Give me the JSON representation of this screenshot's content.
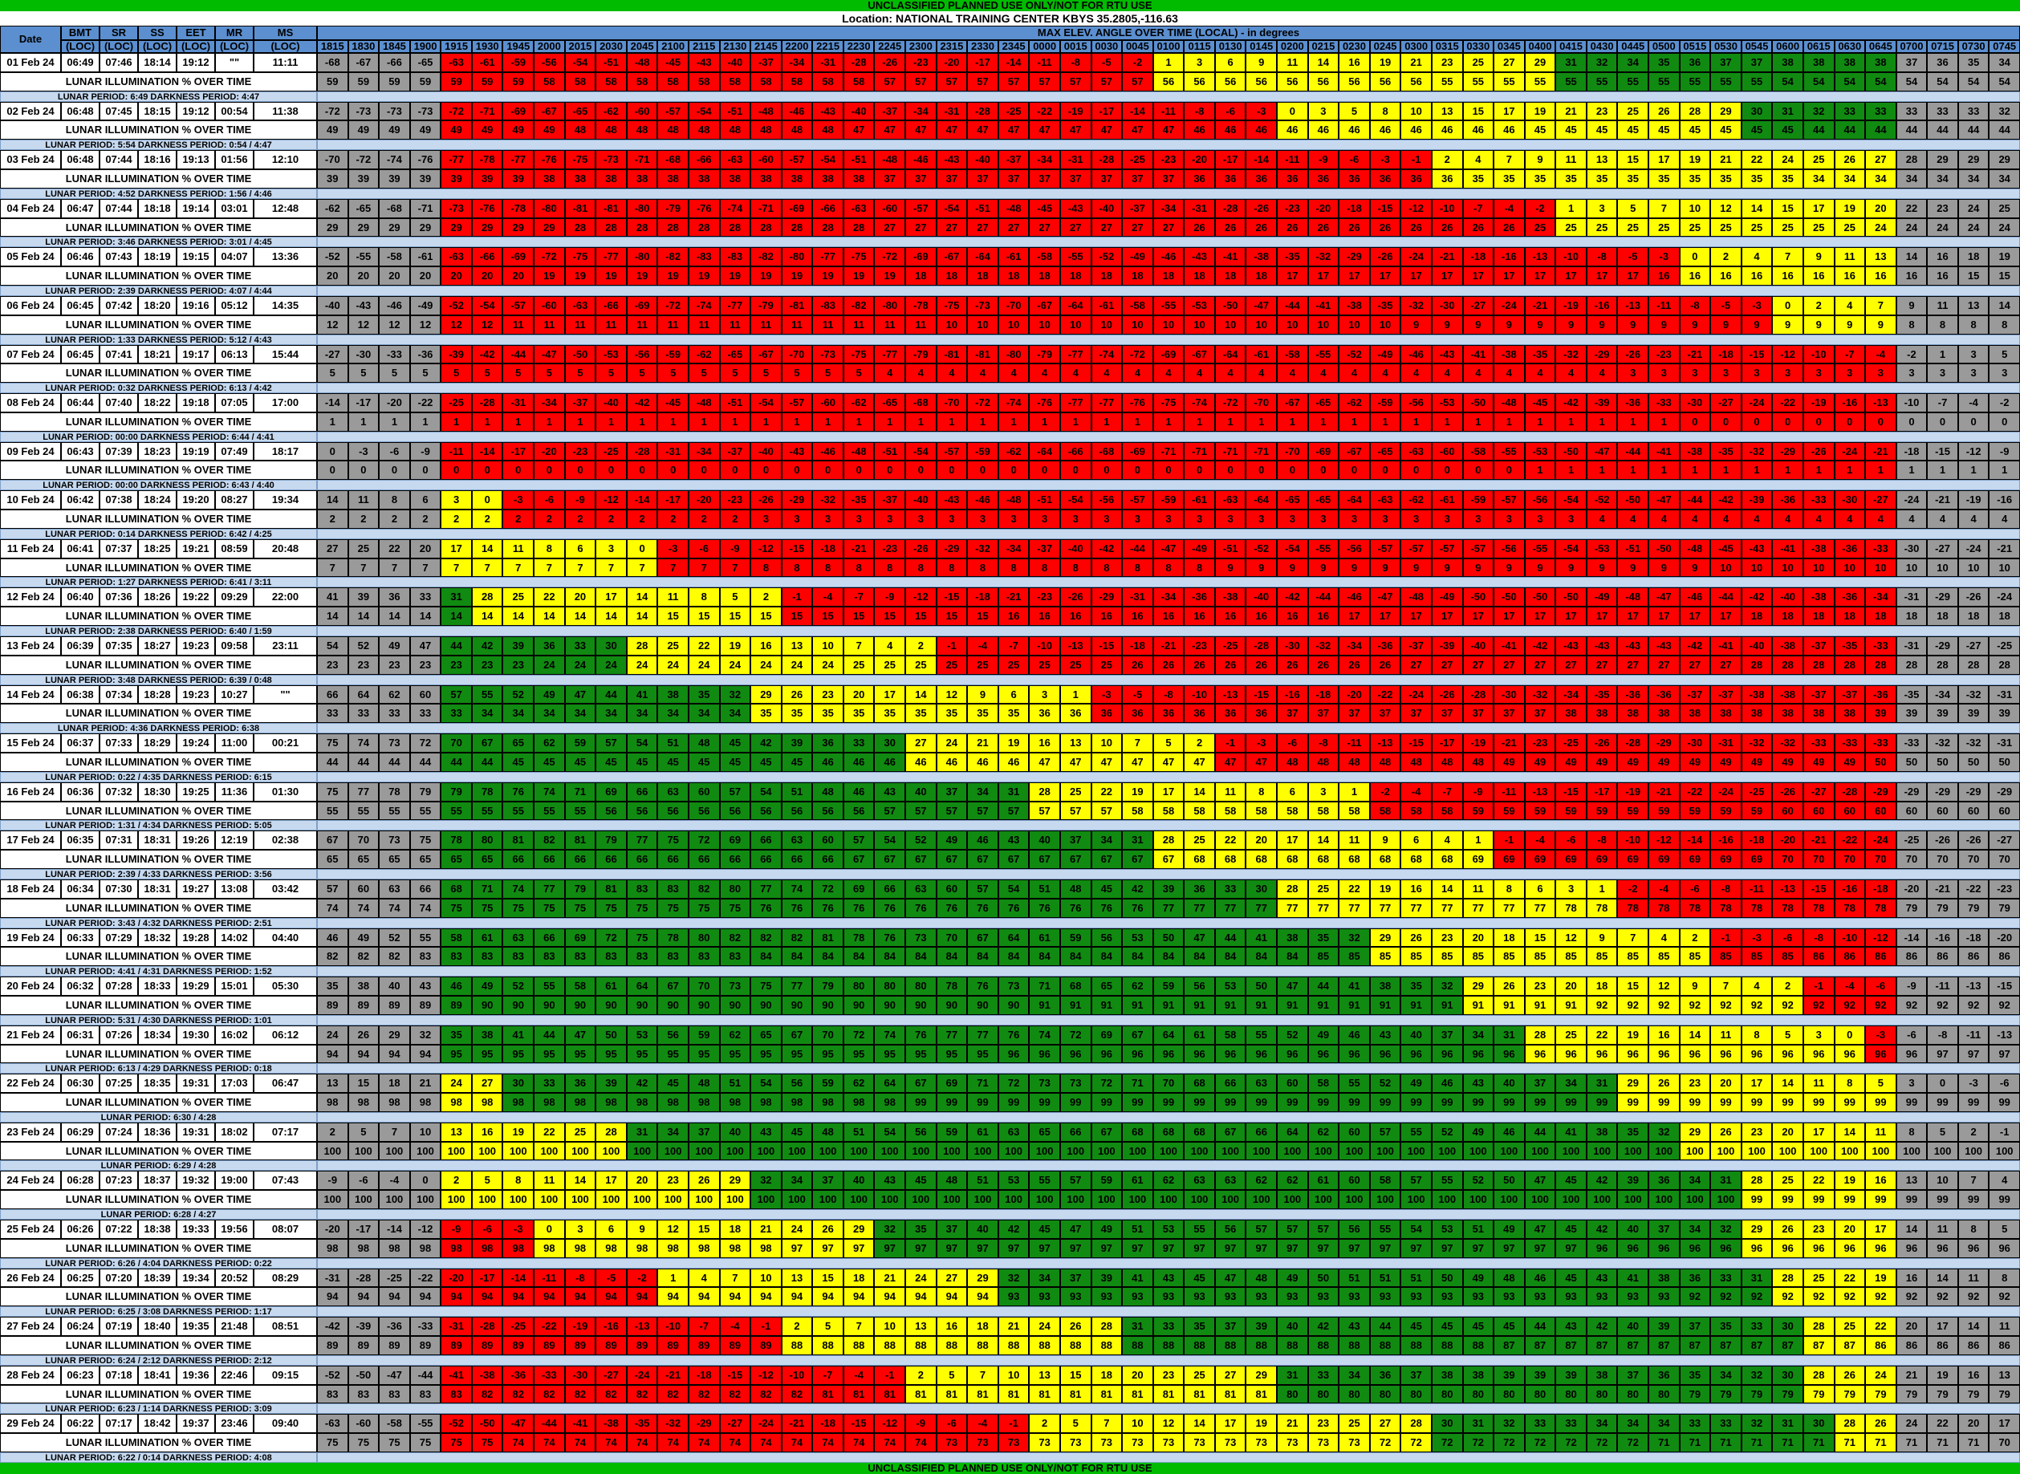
{
  "banner_top": "UNCLASSIFIED PLANNED USE ONLY/NOT FOR RTU USE",
  "banner_bottom": "UNCLASSIFIED PLANNED USE ONLY/NOT FOR RTU USE",
  "location": "Location: NATIONAL TRAINING CENTER KBYS 35.2805,-116.63",
  "header": {
    "date": "Date",
    "cols": [
      [
        "BMT",
        "(LOC)"
      ],
      [
        "SR",
        "(LOC)"
      ],
      [
        "SS",
        "(LOC)"
      ],
      [
        "EET",
        "(LOC)"
      ],
      [
        "MR",
        "(LOC)"
      ],
      [
        "MS",
        "(LOC)"
      ]
    ],
    "max_elev": "MAX ELEV. ANGLE OVER TIME (LOCAL) - in degrees",
    "times": [
      "1815",
      "1830",
      "1845",
      "1900",
      "1915",
      "1930",
      "1945",
      "2000",
      "2015",
      "2030",
      "2045",
      "2100",
      "2115",
      "2130",
      "2145",
      "2200",
      "2215",
      "2230",
      "2245",
      "2300",
      "2315",
      "2330",
      "2345",
      "0000",
      "0015",
      "0030",
      "0045",
      "0100",
      "0115",
      "0130",
      "0145",
      "0200",
      "0215",
      "0230",
      "0245",
      "0300",
      "0315",
      "0330",
      "0345",
      "0400",
      "0415",
      "0430",
      "0445",
      "0500",
      "0515",
      "0530",
      "0545",
      "0600",
      "0615",
      "0630",
      "0645",
      "0700",
      "0715",
      "0730",
      "0745"
    ]
  },
  "illum_label": "LUNAR ILLUMINATION % OVER TIME",
  "colors": {
    "gray": "#9a9a9a",
    "red": "#ff0000",
    "yellow": "#ffff00",
    "green": "#118a11",
    "period_band": "#c6d9ef",
    "header": "#5b8fd0"
  },
  "days": [
    {
      "date": "01 Feb 24",
      "bmt": "06:49",
      "sr": "07:46",
      "ss": "18:14",
      "eet": "19:12",
      "mr": "\"\"",
      "ms": "11:11",
      "elev": "-68 -67 -66 -65 -63 -61 -59 -56 -54 -51 -48 -45 -43 -40 -37 -34 -31 -28 -26 -23 -20 -17 -14 -11 -8 -5 -2 1 3 6 9 11 14 16 19 21 23 25 27 29 31 32 34 35 36 37 37 38 38 38 38 37 36 35 34",
      "illum": "59 59 59 59 59 59 59 58 58 58 58 58 58 58 58 58 58 58 57 57 57 57 57 57 57 57 57 56 56 56 56 56 56 56 56 56 55 55 55 55 55 55 55 55 55 55 55 54 54 54 54 54 54 54 54",
      "period": "LUNAR PERIOD: 6:49  DARKNESS PERIOD: 4:47"
    },
    {
      "date": "02 Feb 24",
      "bmt": "06:48",
      "sr": "07:45",
      "ss": "18:15",
      "eet": "19:12",
      "mr": "00:54",
      "ms": "11:38",
      "elev": "-72 -73 -73 -73 -72 -71 -69 -67 -65 -62 -60 -57 -54 -51 -48 -46 -43 -40 -37 -34 -31 -28 -25 -22 -19 -17 -14 -11 -8 -6 -3 0 3 5 8 10 13 15 17 19 21 23 25 26 28 29 30 31 32 33 33 33 33 33 32",
      "illum": "49 49 49 49 49 49 49 49 48 48 48 48 48 48 48 48 48 47 47 47 47 47 47 47 47 47 47 47 46 46 46 46 46 46 46 46 46 46 46 45 45 45 45 45 45 45 45 45 44 44 44 44 44 44 44",
      "period": "LUNAR PERIOD: 5:54  DARKNESS PERIOD: 0:54 / 4:47"
    },
    {
      "date": "03 Feb 24",
      "bmt": "06:48",
      "sr": "07:44",
      "ss": "18:16",
      "eet": "19:13",
      "mr": "01:56",
      "ms": "12:10",
      "elev": "-70 -72 -74 -76 -77 -78 -77 -76 -75 -73 -71 -68 -66 -63 -60 -57 -54 -51 -48 -46 -43 -40 -37 -34 -31 -28 -25 -23 -20 -17 -14 -11 -9 -6 -3 -1 2 4 7 9 11 13 15 17 19 21 22 24 25 26 27 28 29 29 29",
      "illum": "39 39 39 39 39 39 39 38 38 38 38 38 38 38 38 38 38 38 37 37 37 37 37 37 37 37 37 37 36 36 36 36 36 36 36 36 36 35 35 35 35 35 35 35 35 35 35 35 34 34 34 34 34 34 34",
      "period": "LUNAR PERIOD: 4:52  DARKNESS PERIOD: 1:56 / 4:46"
    },
    {
      "date": "04 Feb 24",
      "bmt": "06:47",
      "sr": "07:44",
      "ss": "18:18",
      "eet": "19:14",
      "mr": "03:01",
      "ms": "12:48",
      "elev": "-62 -65 -68 -71 -73 -76 -78 -80 -81 -81 -80 -79 -76 -74 -71 -69 -66 -63 -60 -57 -54 -51 -48 -45 -43 -40 -37 -34 -31 -28 -26 -23 -20 -18 -15 -12 -10 -7 -4 -2 1 3 5 7 10 12 14 15 17 19 20 22 23 24 25",
      "illum": "29 29 29 29 29 29 29 29 28 28 28 28 28 28 28 28 28 28 27 27 27 27 27 27 27 27 27 27 26 26 26 26 26 26 26 26 26 26 26 25 25 25 25 25 25 25 25 25 25 25 24 24 24 24 24",
      "period": "LUNAR PERIOD: 3:46  DARKNESS PERIOD: 3:01 / 4:45"
    },
    {
      "date": "05 Feb 24",
      "bmt": "06:46",
      "sr": "07:43",
      "ss": "18:19",
      "eet": "19:15",
      "mr": "04:07",
      "ms": "13:36",
      "elev": "-52 -55 -58 -61 -63 -66 -69 -72 -75 -77 -80 -82 -83 -83 -82 -80 -77 -75 -72 -69 -67 -64 -61 -58 -55 -52 -49 -46 -43 -41 -38 -35 -32 -29 -26 -24 -21 -18 -16 -13 -10 -8 -5 -3 0 2 4 7 9 11 13 14 16 18 19",
      "illum": "20 20 20 20 20 20 20 19 19 19 19 19 19 19 19 19 19 19 19 18 18 18 18 18 18 18 18 18 18 18 18 17 17 17 17 17 17 17 17 17 17 17 17 16 16 16 16 16 16 16 16 16 16 15 15",
      "period": "LUNAR PERIOD: 2:39  DARKNESS PERIOD: 4:07 / 4:44"
    },
    {
      "date": "06 Feb 24",
      "bmt": "06:45",
      "sr": "07:42",
      "ss": "18:20",
      "eet": "19:16",
      "mr": "05:12",
      "ms": "14:35",
      "elev": "-40 -43 -46 -49 -52 -54 -57 -60 -63 -66 -69 -72 -74 -77 -79 -81 -83 -82 -80 -78 -75 -73 -70 -67 -64 -61 -58 -55 -53 -50 -47 -44 -41 -38 -35 -32 -30 -27 -24 -21 -19 -16 -13 -11 -8 -5 -3 0 2 4 7 9 11 13 14",
      "illum": "12 12 12 12 12 12 11 11 11 11 11 11 11 11 11 11 11 11 11 11 10 10 10 10 10 10 10 10 10 10 10 10 10 10 10 9 9 9 9 9 9 9 9 9 9 9 9 9 9 9 9 8 8 8 8",
      "period": "LUNAR PERIOD: 1:33  DARKNESS PERIOD: 5:12 / 4:43"
    },
    {
      "date": "07 Feb 24",
      "bmt": "06:45",
      "sr": "07:41",
      "ss": "18:21",
      "eet": "19:17",
      "mr": "06:13",
      "ms": "15:44",
      "elev": "-27 -30 -33 -36 -39 -42 -44 -47 -50 -53 -56 -59 -62 -65 -67 -70 -73 -75 -77 -79 -81 -81 -80 -79 -77 -74 -72 -69 -67 -64 -61 -58 -55 -52 -49 -46 -43 -41 -38 -35 -32 -29 -26 -23 -21 -18 -15 -12 -10 -7 -4 -2 1 3 5",
      "illum": "5 5 5 5 5 5 5 5 5 5 5 5 5 5 5 5 5 5 4 4 4 4 4 4 4 4 4 4 4 4 4 4 4 4 4 4 4 4 4 4 4 4 3 3 3 3 3 3 3 3 3 3 3 3 3",
      "period": "LUNAR PERIOD: 0:32  DARKNESS PERIOD: 6:13 / 4:42"
    },
    {
      "date": "08 Feb 24",
      "bmt": "06:44",
      "sr": "07:40",
      "ss": "18:22",
      "eet": "19:18",
      "mr": "07:05",
      "ms": "17:00",
      "elev": "-14 -17 -20 -22 -25 -28 -31 -34 -37 -40 -42 -45 -48 -51 -54 -57 -60 -62 -65 -68 -70 -72 -74 -76 -77 -77 -76 -75 -74 -72 -70 -67 -65 -62 -59 -56 -53 -50 -48 -45 -42 -39 -36 -33 -30 -27 -24 -22 -19 -16 -13 -10 -7 -4 -2",
      "illum": "1 1 1 1 1 1 1 1 1 1 1 1 1 1 1 1 1 1 1 1 1 1 1 1 1 1 1 1 1 1 1 1 1 1 1 1 1 1 1 1 1 1 1 1 0 0 0 0 0 0 0 0 0 0 0",
      "period": "LUNAR PERIOD: 00:00  DARKNESS PERIOD: 6:44 / 4:41"
    },
    {
      "date": "09 Feb 24",
      "bmt": "06:43",
      "sr": "07:39",
      "ss": "18:23",
      "eet": "19:19",
      "mr": "07:49",
      "ms": "18:17",
      "elev": "0 -3 -6 -9 -11 -14 -17 -20 -23 -25 -28 -31 -34 -37 -40 -43 -46 -48 -51 -54 -57 -59 -62 -64 -66 -68 -69 -71 -71 -71 -71 -70 -69 -67 -65 -63 -60 -58 -55 -53 -50 -47 -44 -41 -38 -35 -32 -29 -26 -24 -21 -18 -15 -12 -9",
      "illum": "0 0 0 0 0 0 0 0 0 0 0 0 0 0 0 0 0 0 0 0 0 0 0 0 0 0 0 0 0 0 0 0 0 0 0 0 0 0 0 1 1 1 1 1 1 1 1 1 1 1 1 1 1 1 1",
      "period": "LUNAR PERIOD: 00:00  DARKNESS PERIOD: 6:43 / 4:40"
    },
    {
      "date": "10 Feb 24",
      "bmt": "06:42",
      "sr": "07:38",
      "ss": "18:24",
      "eet": "19:20",
      "mr": "08:27",
      "ms": "19:34",
      "elev": "14 11 8 6 3 0 -3 -6 -9 -12 -14 -17 -20 -23 -26 -29 -32 -35 -37 -40 -43 -46 -48 -51 -54 -56 -57 -59 -61 -63 -64 -65 -65 -64 -63 -62 -61 -59 -57 -56 -54 -52 -50 -47 -44 -42 -39 -36 -33 -30 -27 -24 -21 -19 -16",
      "illum": "2 2 2 2 2 2 2 2 2 2 2 2 2 2 3 3 3 3 3 3 3 3 3 3 3 3 3 3 3 3 3 3 3 3 3 3 3 3 3 3 3 4 4 4 4 4 4 4 4 4 4 4 4 4 4",
      "period": "LUNAR PERIOD: 0:14  DARKNESS PERIOD: 6:42 / 4:25"
    },
    {
      "date": "11 Feb 24",
      "bmt": "06:41",
      "sr": "07:37",
      "ss": "18:25",
      "eet": "19:21",
      "mr": "08:59",
      "ms": "20:48",
      "elev": "27 25 22 20 17 14 11 8 6 3 0 -3 -6 -9 -12 -15 -18 -21 -23 -26 -29 -32 -34 -37 -40 -42 -44 -47 -49 -51 -52 -54 -55 -56 -57 -57 -57 -57 -56 -55 -54 -53 -51 -50 -48 -45 -43 -41 -38 -36 -33 -30 -27 -24 -21",
      "illum": "7 7 7 7 7 7 7 7 7 7 7 7 7 7 8 8 8 8 8 8 8 8 8 8 8 8 8 8 8 9 9 9 9 9 9 9 9 9 9 9 9 9 9 9 9 10 10 10 10 10 10 10 10 10 10",
      "period": "LUNAR PERIOD: 1:27  DARKNESS PERIOD: 6:41 / 3:11"
    },
    {
      "date": "12 Feb 24",
      "bmt": "06:40",
      "sr": "07:36",
      "ss": "18:26",
      "eet": "19:22",
      "mr": "09:29",
      "ms": "22:00",
      "elev": "41 39 36 33 31 28 25 22 20 17 14 11 8 5 2 -1 -4 -7 -9 -12 -15 -18 -21 -23 -26 -29 -31 -34 -36 -38 -40 -42 -44 -46 -47 -48 -49 -50 -50 -50 -50 -49 -48 -47 -46 -44 -42 -40 -38 -36 -34 -31 -29 -26 -24",
      "illum": "14 14 14 14 14 14 14 14 14 14 14 15 15 15 15 15 15 15 15 15 15 15 16 16 16 16 16 16 16 16 16 16 16 17 17 17 17 17 17 17 17 17 17 17 17 17 18 18 18 18 18 18 18 18 18",
      "period": "LUNAR PERIOD: 2:38  DARKNESS PERIOD: 6:40 / 1:59"
    },
    {
      "date": "13 Feb 24",
      "bmt": "06:39",
      "sr": "07:35",
      "ss": "18:27",
      "eet": "19:23",
      "mr": "09:58",
      "ms": "23:11",
      "elev": "54 52 49 47 44 42 39 36 33 30 28 25 22 19 16 13 10 7 4 2 -1 -4 -7 -10 -13 -15 -18 -21 -23 -25 -28 -30 -32 -34 -36 -37 -39 -40 -41 -42 -43 -43 -43 -43 -42 -41 -40 -38 -37 -35 -33 -31 -29 -27 -25",
      "illum": "23 23 23 23 23 23 23 24 24 24 24 24 24 24 24 24 24 25 25 25 25 25 25 25 25 25 26 26 26 26 26 26 26 26 26 27 27 27 27 27 27 27 27 27 27 27 28 28 28 28 28 28 28 28 28",
      "period": "LUNAR PERIOD: 3:48  DARKNESS PERIOD: 6:39 / 0:48"
    },
    {
      "date": "14 Feb 24",
      "bmt": "06:38",
      "sr": "07:34",
      "ss": "18:28",
      "eet": "19:23",
      "mr": "10:27",
      "ms": "\"\"",
      "elev": "66 64 62 60 57 55 52 49 47 44 41 38 35 32 29 26 23 20 17 14 12 9 6 3 1 -3 -5 -8 -10 -13 -15 -16 -18 -20 -22 -24 -26 -28 -30 -32 -34 -35 -36 -36 -37 -37 -38 -38 -37 -37 -36 -35 -34 -32 -31",
      "illum": "33 33 33 33 33 34 34 34 34 34 34 34 34 34 35 35 35 35 35 35 35 35 35 36 36 36 36 36 36 36 36 37 37 37 37 37 37 37 37 37 38 38 38 38 38 38 38 38 38 38 39 39 39 39 39",
      "period": "LUNAR PERIOD: 4:36  DARKNESS PERIOD: 6:38"
    },
    {
      "date": "15 Feb 24",
      "bmt": "06:37",
      "sr": "07:33",
      "ss": "18:29",
      "eet": "19:24",
      "mr": "11:00",
      "ms": "00:21",
      "elev": "75 74 73 72 70 67 65 62 59 57 54 51 48 45 42 39 36 33 30 27 24 21 19 16 13 10 7 5 2 -1 -3 -6 -8 -11 -13 -15 -17 -19 -21 -23 -25 -26 -28 -29 -30 -31 -32 -32 -33 -33 -33 -33 -32 -32 -31",
      "illum": "44 44 44 44 44 44 45 45 45 45 45 45 45 45 45 45 46 46 46 46 46 46 46 47 47 47 47 47 47 47 47 48 48 48 48 48 48 48 49 49 49 49 49 49 49 49 49 49 49 49 50 50 50 50 50",
      "period": "LUNAR PERIOD: 0:22 / 4:35  DARKNESS PERIOD: 6:15"
    },
    {
      "date": "16 Feb 24",
      "bmt": "06:36",
      "sr": "07:32",
      "ss": "18:30",
      "eet": "19:25",
      "mr": "11:36",
      "ms": "01:30",
      "elev": "75 77 78 79 79 78 76 74 71 69 66 63 60 57 54 51 48 46 43 40 37 34 31 28 25 22 19 17 14 11 8 6 3 1 -2 -4 -7 -9 -11 -13 -15 -17 -19 -21 -22 -24 -25 -26 -27 -28 -29 -29 -29 -29 -29",
      "illum": "55 55 55 55 55 55 55 55 55 56 56 56 56 56 56 56 56 56 57 57 57 57 57 57 57 57 58 58 58 58 58 58 58 58 58 58 58 59 59 59 59 59 59 59 59 59 59 60 60 60 60 60 60 60 60",
      "period": "LUNAR PERIOD: 1:31 / 4:34  DARKNESS PERIOD: 5:05"
    },
    {
      "date": "17 Feb 24",
      "bmt": "06:35",
      "sr": "07:31",
      "ss": "18:31",
      "eet": "19:26",
      "mr": "12:19",
      "ms": "02:38",
      "elev": "67 70 73 75 78 80 81 82 81 79 77 75 72 69 66 63 60 57 54 52 49 46 43 40 37 34 31 28 25 22 20 17 14 11 9 6 4 1 -1 -4 -6 -8 -10 -12 -14 -16 -18 -20 -21 -22 -24 -25 -26 -26 -27",
      "illum": "65 65 65 65 65 65 66 66 66 66 66 66 66 66 66 66 66 67 67 67 67 67 67 67 67 67 67 67 68 68 68 68 68 68 68 68 68 69 69 69 69 69 69 69 69 69 69 70 70 70 70 70 70 70 70",
      "period": "LUNAR PERIOD: 2:39 / 4:33  DARKNESS PERIOD: 3:56"
    },
    {
      "date": "18 Feb 24",
      "bmt": "06:34",
      "sr": "07:30",
      "ss": "18:31",
      "eet": "19:27",
      "mr": "13:08",
      "ms": "03:42",
      "elev": "57 60 63 66 68 71 74 77 79 81 83 83 82 80 77 74 72 69 66 63 60 57 54 51 48 45 42 39 36 33 30 28 25 22 19 16 14 11 8 6 3 1 -2 -4 -6 -8 -11 -13 -15 -16 -18 -20 -21 -22 -23",
      "illum": "74 74 74 74 75 75 75 75 75 75 75 75 75 75 76 76 76 76 76 76 76 76 76 76 76 76 76 77 77 77 77 77 77 77 77 77 77 77 77 77 78 78 78 78 78 78 78 78 78 78 78 79 79 79 79",
      "period": "LUNAR PERIOD: 3:43 / 4:32  DARKNESS PERIOD: 2:51"
    },
    {
      "date": "19 Feb 24",
      "bmt": "06:33",
      "sr": "07:29",
      "ss": "18:32",
      "eet": "19:28",
      "mr": "14:02",
      "ms": "04:40",
      "elev": "46 49 52 55 58 61 63 66 69 72 75 78 80 82 82 82 81 78 76 73 70 67 64 61 59 56 53 50 47 44 41 38 35 32 29 26 23 20 18 15 12 9 7 4 2 -1 -3 -6 -8 -10 -12 -14 -16 -18 -20",
      "illum": "82 82 82 83 83 83 83 83 83 83 83 83 83 83 84 84 84 84 84 84 84 84 84 84 84 84 84 84 84 84 84 84 85 85 85 85 85 85 85 85 85 85 85 85 85 85 85 85 86 86 86 86 86 86 86",
      "period": "LUNAR PERIOD: 4:41 / 4:31  DARKNESS PERIOD: 1:52"
    },
    {
      "date": "20 Feb 24",
      "bmt": "06:32",
      "sr": "07:28",
      "ss": "18:33",
      "eet": "19:29",
      "mr": "15:01",
      "ms": "05:30",
      "elev": "35 38 40 43 46 49 52 55 58 61 64 67 70 73 75 77 79 80 80 80 78 76 73 71 68 65 62 59 56 53 50 47 44 41 38 35 32 29 26 23 20 18 15 12 9 7 4 2 -1 -4 -6 -9 -11 -13 -15",
      "illum": "89 89 89 89 89 90 90 90 90 90 90 90 90 90 90 90 90 90 90 90 90 90 90 91 91 91 91 91 91 91 91 91 91 91 91 91 91 91 91 91 91 92 92 92 92 92 92 92 92 92 92 92 92 92 92",
      "period": "LUNAR PERIOD: 5:31 / 4:30  DARKNESS PERIOD: 1:01"
    },
    {
      "date": "21 Feb 24",
      "bmt": "06:31",
      "sr": "07:26",
      "ss": "18:34",
      "eet": "19:30",
      "mr": "16:02",
      "ms": "06:12",
      "elev": "24 26 29 32 35 38 41 44 47 50 53 56 59 62 65 67 70 72 74 76 77 77 76 74 72 69 67 64 61 58 55 52 49 46 43 40 37 34 31 28 25 22 19 16 14 11 8 5 3 0 -3 -6 -8 -11 -13",
      "illum": "94 94 94 94 95 95 95 95 95 95 95 95 95 95 95 95 95 95 95 95 95 95 96 96 96 96 96 96 96 96 96 96 96 96 96 96 96 96 96 96 96 96 96 96 96 96 96 96 96 96 96 96 97 97 97",
      "period": "LUNAR PERIOD: 6:13 / 4:29  DARKNESS PERIOD: 0:18"
    },
    {
      "date": "22 Feb 24",
      "bmt": "06:30",
      "sr": "07:25",
      "ss": "18:35",
      "eet": "19:31",
      "mr": "17:03",
      "ms": "06:47",
      "elev": "13 15 18 21 24 27 30 33 36 39 42 45 48 51 54 56 59 62 64 67 69 71 72 73 73 72 71 70 68 66 63 60 58 55 52 49 46 43 40 37 34 31 29 26 23 20 17 14 11 8 5 3 0 -3 -6",
      "illum": "98 98 98 98 98 98 98 98 98 98 98 98 98 98 98 98 98 98 98 99 99 99 99 99 99 99 99 99 99 99 99 99 99 99 99 99 99 99 99 99 99 99 99 99 99 99 99 99 99 99 99 99 99 99 99",
      "period": "LUNAR PERIOD: 6:30 / 4:28"
    },
    {
      "date": "23 Feb 24",
      "bmt": "06:29",
      "sr": "07:24",
      "ss": "18:36",
      "eet": "19:31",
      "mr": "18:02",
      "ms": "07:17",
      "elev": "2 5 7 10 13 16 19 22 25 28 31 34 37 40 43 45 48 51 54 56 59 61 63 65 66 67 68 68 68 67 66 64 62 60 57 55 52 49 46 44 41 38 35 32 29 26 23 20 17 14 11 8 5 2 -1",
      "illum": "100 100 100 100 100 100 100 100 100 100 100 100 100 100 100 100 100 100 100 100 100 100 100 100 100 100 100 100 100 100 100 100 100 100 100 100 100 100 100 100 100 100 100 100 100 100 100 100 100 100 100 100 100 100 100",
      "period": "LUNAR PERIOD: 6:29 / 4:28"
    },
    {
      "date": "24 Feb 24",
      "bmt": "06:28",
      "sr": "07:23",
      "ss": "18:37",
      "eet": "19:32",
      "mr": "19:00",
      "ms": "07:43",
      "elev": "-9 -6 -4 0 2 5 8 11 14 17 20 23 26 29 32 34 37 40 43 45 48 51 53 55 57 59 61 62 63 63 62 62 61 60 58 57 55 52 50 47 45 42 39 36 34 31 28 25 22 19 16 13 10 7 4",
      "illum": "100 100 100 100 100 100 100 100 100 100 100 100 100 100 100 100 100 100 100 100 100 100 100 100 100 100 100 100 100 100 100 100 100 100 100 100 100 100 100 100 100 100 100 100 100 100 99 99 99 99 99 99 99 99 99",
      "period": "LUNAR PERIOD: 6:28 / 4:27"
    },
    {
      "date": "25 Feb 24",
      "bmt": "06:26",
      "sr": "07:22",
      "ss": "18:38",
      "eet": "19:33",
      "mr": "19:56",
      "ms": "08:07",
      "elev": "-20 -17 -14 -12 -9 -6 -3 0 3 6 9 12 15 18 21 24 26 29 32 35 37 40 42 45 47 49 51 53 55 56 57 57 57 56 55 54 53 51 49 47 45 42 40 37 34 32 29 26 23 20 17 14 11 8 5",
      "illum": "98 98 98 98 98 98 98 98 98 98 98 98 98 98 98 97 97 97 97 97 97 97 97 97 97 97 97 97 97 97 97 97 97 97 97 97 97 97 97 97 97 96 96 96 96 96 96 96 96 96 96 96 96 96 96",
      "period": "LUNAR PERIOD: 6:26 / 4:04  DARKNESS PERIOD: 0:22"
    },
    {
      "date": "26 Feb 24",
      "bmt": "06:25",
      "sr": "07:20",
      "ss": "18:39",
      "eet": "19:34",
      "mr": "20:52",
      "ms": "08:29",
      "elev": "-31 -28 -25 -22 -20 -17 -14 -11 -8 -5 -2 1 4 7 10 13 15 18 21 24 27 29 32 34 37 39 41 43 45 47 48 49 50 51 51 51 50 49 48 46 45 43 41 38 36 33 31 28 25 22 19 16 14 11 8",
      "illum": "94 94 94 94 94 94 94 94 94 94 94 94 94 94 94 94 94 94 94 94 94 94 93 93 93 93 93 93 93 93 93 93 93 93 93 93 93 93 93 93 93 93 93 93 92 92 92 92 92 92 92 92 92 92 92",
      "period": "LUNAR PERIOD: 6:25 / 3:08  DARKNESS PERIOD: 1:17"
    },
    {
      "date": "27 Feb 24",
      "bmt": "06:24",
      "sr": "07:19",
      "ss": "18:40",
      "eet": "19:35",
      "mr": "21:48",
      "ms": "08:51",
      "elev": "-42 -39 -36 -33 -31 -28 -25 -22 -19 -16 -13 -10 -7 -4 -1 2 5 7 10 13 16 18 21 24 26 28 31 33 35 37 39 40 42 43 44 45 45 45 45 44 43 42 40 39 37 35 33 30 28 25 22 20 17 14 11",
      "illum": "89 89 89 89 89 89 89 89 89 89 89 89 89 89 89 88 88 88 88 88 88 88 88 88 88 88 88 88 88 88 88 88 88 88 88 88 88 88 87 87 87 87 87 87 87 87 87 87 87 87 86 86 86 86 86",
      "period": "LUNAR PERIOD: 6:24 / 2:12  DARKNESS PERIOD: 2:12"
    },
    {
      "date": "28 Feb 24",
      "bmt": "06:23",
      "sr": "07:18",
      "ss": "18:41",
      "eet": "19:36",
      "mr": "22:46",
      "ms": "09:15",
      "elev": "-52 -50 -47 -44 -41 -38 -36 -33 -30 -27 -24 -21 -18 -15 -12 -10 -7 -4 -1 2 5 7 10 13 15 18 20 23 25 27 29 31 33 34 36 37 38 38 39 39 39 38 37 36 35 34 32 30 28 26 24 21 19 16 13",
      "illum": "83 83 83 83 83 82 82 82 82 82 82 82 82 82 82 82 81 81 81 81 81 81 81 81 81 81 81 81 81 81 81 80 80 80 80 80 80 80 80 80 80 80 80 80 79 79 79 79 79 79 79 79 79 79 79",
      "period": "LUNAR PERIOD: 6:23 / 1:14  DARKNESS PERIOD: 3:09"
    },
    {
      "date": "29 Feb 24",
      "bmt": "06:22",
      "sr": "07:17",
      "ss": "18:42",
      "eet": "19:37",
      "mr": "23:46",
      "ms": "09:40",
      "elev": "-63 -60 -58 -55 -52 -50 -47 -44 -41 -38 -35 -32 -29 -27 -24 -21 -18 -15 -12 -9 -6 -4 -1 2 5 7 10 12 14 17 19 21 23 25 27 28 30 31 32 33 33 34 34 34 33 33 32 31 30 28 26 24 22 20 17",
      "illum": "75 75 75 75 75 75 74 74 74 74 74 74 74 74 74 74 74 74 74 74 73 73 73 73 73 73 73 73 73 73 73 73 73 73 72 72 72 72 72 72 72 72 72 71 71 71 71 71 71 71 71 71 71 71 70",
      "period": "LUNAR PERIOD: 6:22 / 0:14  DARKNESS PERIOD: 4:08"
    }
  ]
}
